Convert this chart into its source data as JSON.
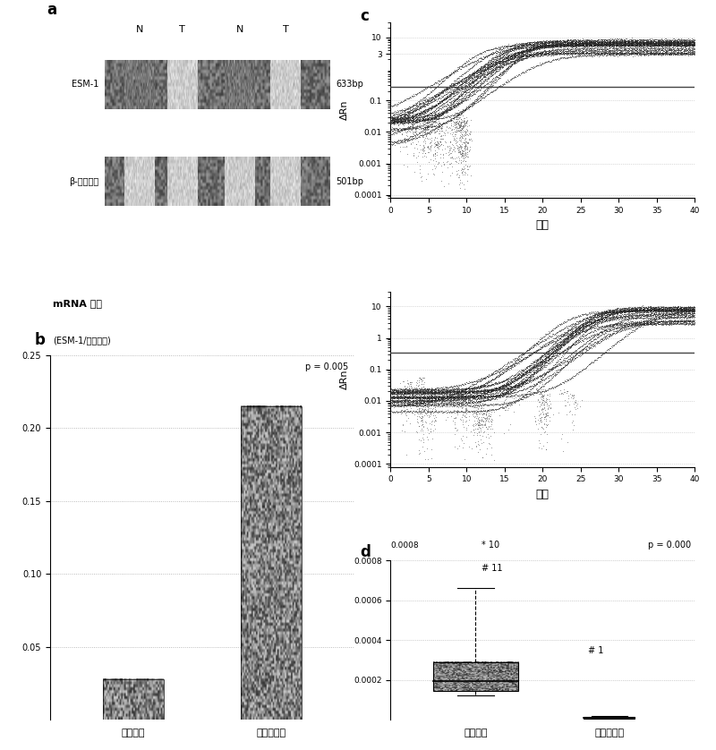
{
  "panel_a": {
    "label": "a",
    "lane_labels": [
      "N",
      "T",
      "N",
      "T"
    ],
    "row1_label": "ESM-1",
    "row2_label": "β-肌动蛋白",
    "row1_bp": "633bp",
    "row2_bp": "501bp"
  },
  "panel_b": {
    "label": "b",
    "title_line1": "mRNA 表达",
    "title_line2": "(ESM-1/肌动蛋白)",
    "categories": [
      "肿瘼组织",
      "非肿瘼组织"
    ],
    "values": [
      0.028,
      0.215
    ],
    "ylim": [
      0,
      0.25
    ],
    "yticks": [
      0.05,
      0.1,
      0.15,
      0.2,
      0.25
    ],
    "p_value": "p = 0.005"
  },
  "panel_c1": {
    "label": "c",
    "ylabel": "ΔRn",
    "xlabel": "循环",
    "xlim": [
      0,
      40
    ],
    "xticks": [
      0,
      5,
      10,
      15,
      20,
      25,
      30,
      35,
      40
    ],
    "ytick_vals": [
      0.0001,
      0.001,
      0.01,
      0.1,
      3,
      10
    ],
    "ytick_labels": [
      "0.0001",
      "0.001",
      "0.01",
      "0.1",
      "3",
      "10"
    ],
    "threshold": 0.28,
    "curve_midpoint": 16,
    "n_curves": 22
  },
  "panel_c2": {
    "ylabel": "ΔRn",
    "xlabel": "循环",
    "xlim": [
      0,
      40
    ],
    "xticks": [
      0,
      5,
      10,
      15,
      20,
      25,
      30,
      35,
      40
    ],
    "ytick_vals": [
      0.0001,
      0.001,
      0.01,
      0.1,
      1,
      10
    ],
    "ytick_labels": [
      "0.0001",
      "0.001",
      "0.01",
      "0.1",
      "1",
      "10"
    ],
    "threshold": 0.35,
    "curve_midpoint": 28,
    "n_curves": 22
  },
  "panel_d": {
    "label": "d",
    "categories": [
      "肿瘼组织",
      "非肿瘼组织"
    ],
    "ylim": [
      0,
      0.0008
    ],
    "yticks": [
      0.0002,
      0.0004,
      0.0006,
      0.0008
    ],
    "ytick_labels": [
      "0.0002",
      "0.0004",
      "0.0006",
      "0.0008"
    ],
    "box1": {
      "q1": 0.000145,
      "median": 0.000195,
      "q3": 0.00029,
      "whisker_low": 0.000125,
      "whisker_high": 0.00066
    },
    "box2": {
      "q1": 8e-06,
      "median": 1.2e-05,
      "q3": 1.6e-05,
      "whisker_low": 5e-06,
      "whisker_high": 2e-05
    },
    "ann1": "* 10",
    "ann2": "# 11",
    "ann3": "# 1",
    "p_value": "p = 0.000"
  }
}
